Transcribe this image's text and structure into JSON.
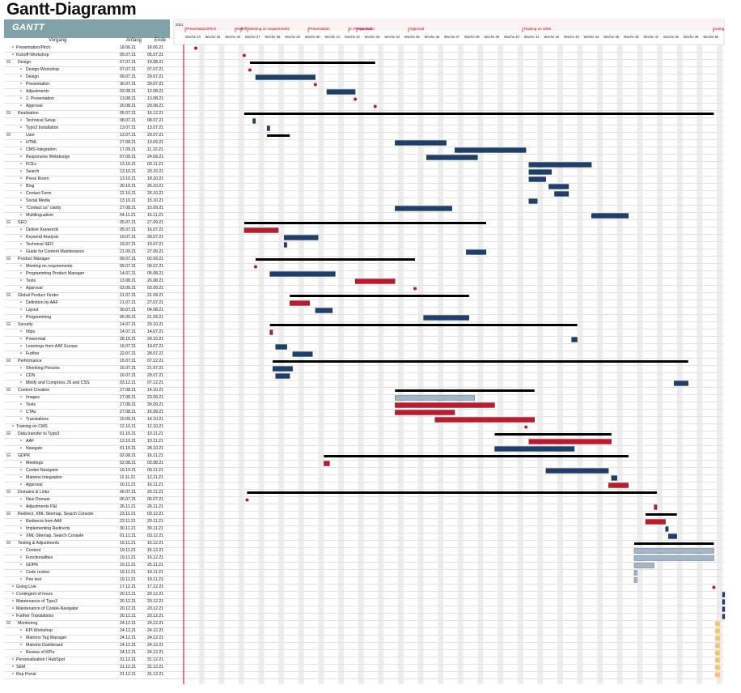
{
  "title": "Gantt-Diagramm",
  "logo_text": "GANTT",
  "columns": {
    "task": "Vorgang",
    "start": "Anfang",
    "end": "Ende"
  },
  "colors": {
    "navy": "#1d3f6b",
    "red": "#c0182c",
    "light": "#9fb6cc",
    "summary": "#000000",
    "weekend": "#e6e6e6",
    "today": "#e9d7ef"
  },
  "chart_data": {
    "type": "gantt",
    "timeline_year": "2021",
    "weeks": [
      "Woche 24",
      "Woche 25",
      "Woche 26",
      "Woche 27",
      "Woche 28",
      "Woche 29",
      "Woche 30",
      "Woche 31",
      "Woche 32",
      "Woche 33",
      "Woche 34",
      "Woche 35",
      "Woche 36",
      "Woche 37",
      "Woche 38",
      "Woche 39",
      "Woche 40",
      "Woche 41",
      "Woche 42",
      "Woche 43",
      "Woche 44",
      "Woche 45",
      "Woche 46",
      "Woche 47",
      "Woche 48",
      "Woche 49",
      "Woche 50"
    ],
    "milestones": [
      "Presentation/Pitch",
      "Kick",
      "Off",
      "Meeting on requirements",
      "Presentation",
      "2. Presentation",
      "Approval",
      "Approval",
      "Training on CMS",
      "Going"
    ],
    "tasks": [
      {
        "name": "Presentation/Pitch",
        "start": "18.06.21",
        "end": "18.06.21",
        "level": 0,
        "type": "milestone"
      },
      {
        "name": "Kickoff-Workshop",
        "start": "05.07.21",
        "end": "05.07.21",
        "level": 0,
        "type": "milestone"
      },
      {
        "name": "Design",
        "start": "07.07.21",
        "end": "19.08.21",
        "level": 0,
        "type": "summary"
      },
      {
        "name": "Design-Workshop",
        "start": "07.07.21",
        "end": "07.07.21",
        "level": 1,
        "type": "milestone"
      },
      {
        "name": "Design",
        "start": "09.07.21",
        "end": "29.07.21",
        "level": 1,
        "type": "task"
      },
      {
        "name": "Presentation",
        "start": "30.07.21",
        "end": "30.07.21",
        "level": 1,
        "type": "milestone"
      },
      {
        "name": "Adjustments",
        "start": "03.08.21",
        "end": "12.08.21",
        "level": 1,
        "type": "task"
      },
      {
        "name": "2. Presentation",
        "start": "13.08.21",
        "end": "13.08.21",
        "level": 1,
        "type": "milestone"
      },
      {
        "name": "Approval",
        "start": "20.08.21",
        "end": "20.08.21",
        "level": 1,
        "type": "milestone"
      },
      {
        "name": "Realisation",
        "start": "05.07.21",
        "end": "16.12.21",
        "level": 0,
        "type": "summary"
      },
      {
        "name": "Technical Setup",
        "start": "08.07.21",
        "end": "08.07.21",
        "level": 1,
        "type": "task"
      },
      {
        "name": "Typo3 Installation",
        "start": "13.07.21",
        "end": "13.07.21",
        "level": 1,
        "type": "task"
      },
      {
        "name": "User",
        "start": "13.07.21",
        "end": "20.07.21",
        "level": 1,
        "type": "summary"
      },
      {
        "name": "HTML",
        "start": "27.08.21",
        "end": "13.09.21",
        "level": 1,
        "type": "task"
      },
      {
        "name": "CMS-Integration",
        "start": "17.09.21",
        "end": "11.10.21",
        "level": 1,
        "type": "task"
      },
      {
        "name": "Responsive Webdesign",
        "start": "07.09.21",
        "end": "24.09.21",
        "level": 1,
        "type": "task"
      },
      {
        "name": "FCEs",
        "start": "13.10.21",
        "end": "03.11.21",
        "level": 1,
        "type": "task"
      },
      {
        "name": "Search",
        "start": "13.10.21",
        "end": "20.10.21",
        "level": 1,
        "type": "task"
      },
      {
        "name": "Press Room",
        "start": "13.10.21",
        "end": "18.10.21",
        "level": 1,
        "type": "task"
      },
      {
        "name": "Blog",
        "start": "20.10.21",
        "end": "26.10.21",
        "level": 1,
        "type": "task"
      },
      {
        "name": "Contact Form",
        "start": "22.10.21",
        "end": "26.10.21",
        "level": 1,
        "type": "task"
      },
      {
        "name": "Social Media",
        "start": "13.10.21",
        "end": "15.10.21",
        "level": 1,
        "type": "task"
      },
      {
        "name": "\"Contact us\" clarity",
        "start": "27.08.21",
        "end": "15.09.21",
        "level": 1,
        "type": "task"
      },
      {
        "name": "Multilingualism",
        "start": "04.11.21",
        "end": "16.11.21",
        "level": 1,
        "type": "task"
      },
      {
        "name": "SEO",
        "start": "05.07.21",
        "end": "27.09.21",
        "level": 0,
        "type": "summary"
      },
      {
        "name": "Deliver Keywords",
        "start": "05.07.21",
        "end": "16.07.21",
        "level": 1,
        "type": "task-red"
      },
      {
        "name": "Keyword Analysis",
        "start": "19.07.21",
        "end": "30.07.21",
        "level": 1,
        "type": "task"
      },
      {
        "name": "Technical SEO",
        "start": "19.07.21",
        "end": "19.07.21",
        "level": 1,
        "type": "task"
      },
      {
        "name": "Guide for Content Maintenance",
        "start": "21.09.21",
        "end": "27.09.21",
        "level": 1,
        "type": "task"
      },
      {
        "name": "Product Manager",
        "start": "09.07.21",
        "end": "02.09.21",
        "level": 0,
        "type": "summary"
      },
      {
        "name": "Meeting on requirements",
        "start": "09.07.21",
        "end": "09.07.21",
        "level": 1,
        "type": "milestone"
      },
      {
        "name": "Programming Product Manager",
        "start": "14.07.21",
        "end": "05.08.21",
        "level": 1,
        "type": "task"
      },
      {
        "name": "Tests",
        "start": "13.08.21",
        "end": "26.08.21",
        "level": 1,
        "type": "task-red"
      },
      {
        "name": "Approval",
        "start": "03.09.21",
        "end": "03.09.21",
        "level": 1,
        "type": "milestone"
      },
      {
        "name": "Global Product Finder",
        "start": "21.07.21",
        "end": "21.09.21",
        "level": 0,
        "type": "summary"
      },
      {
        "name": "Definition by AAF",
        "start": "21.07.21",
        "end": "27.07.21",
        "level": 1,
        "type": "task-red"
      },
      {
        "name": "Layout",
        "start": "30.07.21",
        "end": "04.08.21",
        "level": 1,
        "type": "task"
      },
      {
        "name": "Programming",
        "start": "06.09.21",
        "end": "21.09.21",
        "level": 1,
        "type": "task"
      },
      {
        "name": "Security",
        "start": "14.07.21",
        "end": "29.10.21",
        "level": 0,
        "type": "summary"
      },
      {
        "name": "https",
        "start": "14.07.21",
        "end": "14.07.21",
        "level": 1,
        "type": "task-red"
      },
      {
        "name": "Powermail",
        "start": "28.10.21",
        "end": "29.10.21",
        "level": 1,
        "type": "task"
      },
      {
        "name": "Learnings from AAF Europe",
        "start": "16.07.21",
        "end": "19.07.21",
        "level": 1,
        "type": "task"
      },
      {
        "name": "Further",
        "start": "22.07.21",
        "end": "28.07.21",
        "level": 1,
        "type": "task"
      },
      {
        "name": "Performance",
        "start": "15.07.21",
        "end": "07.12.21",
        "level": 0,
        "type": "summary"
      },
      {
        "name": "Shrinking Pictures",
        "start": "15.07.21",
        "end": "21.07.21",
        "level": 1,
        "type": "task"
      },
      {
        "name": "CDN",
        "start": "16.07.21",
        "end": "20.07.21",
        "level": 1,
        "type": "task"
      },
      {
        "name": "Minify and Compress JS and CSS",
        "start": "03.12.21",
        "end": "07.12.21",
        "level": 1,
        "type": "task"
      },
      {
        "name": "Content Creation",
        "start": "27.08.21",
        "end": "14.10.21",
        "level": 0,
        "type": "summary"
      },
      {
        "name": "Images",
        "start": "27.08.21",
        "end": "23.09.21",
        "level": 1,
        "type": "task-light"
      },
      {
        "name": "Texts",
        "start": "27.08.21",
        "end": "30.09.21",
        "level": 1,
        "type": "task-red"
      },
      {
        "name": "CTAs",
        "start": "27.08.21",
        "end": "16.09.21",
        "level": 1,
        "type": "task-red"
      },
      {
        "name": "Translations",
        "start": "10.09.21",
        "end": "14.10.21",
        "level": 1,
        "type": "task-red"
      },
      {
        "name": "Training on CMS",
        "start": "12.10.21",
        "end": "12.10.21",
        "level": 0,
        "type": "milestone"
      },
      {
        "name": "Data transfer to Typo3",
        "start": "01.10.21",
        "end": "10.11.21",
        "level": 0,
        "type": "summary"
      },
      {
        "name": "AAF",
        "start": "13.10.21",
        "end": "10.11.21",
        "level": 1,
        "type": "task-red"
      },
      {
        "name": "Navigate",
        "start": "01.10.21",
        "end": "28.10.21",
        "level": 1,
        "type": "task"
      },
      {
        "name": "GDPR",
        "start": "02.08.21",
        "end": "16.11.21",
        "level": 0,
        "type": "summary"
      },
      {
        "name": "Meetings",
        "start": "02.08.21",
        "end": "03.08.21",
        "level": 1,
        "type": "task-red"
      },
      {
        "name": "Cookie-Navigator",
        "start": "19.10.21",
        "end": "09.11.21",
        "level": 1,
        "type": "task"
      },
      {
        "name": "Matomo Integration",
        "start": "11.11.21",
        "end": "12.11.21",
        "level": 1,
        "type": "task"
      },
      {
        "name": "Approval",
        "start": "10.11.21",
        "end": "16.11.21",
        "level": 1,
        "type": "task-red"
      },
      {
        "name": "Domains & Links",
        "start": "06.07.21",
        "end": "26.11.21",
        "level": 0,
        "type": "summary"
      },
      {
        "name": "New Domain",
        "start": "06.07.21",
        "end": "06.07.21",
        "level": 1,
        "type": "milestone"
      },
      {
        "name": "Adjustments P&I",
        "start": "26.11.21",
        "end": "26.11.21",
        "level": 1,
        "type": "task-red"
      },
      {
        "name": "Redirect, XML-Sitemap, Search Console",
        "start": "23.11.21",
        "end": "03.12.21",
        "level": 0,
        "type": "summary"
      },
      {
        "name": "Redirects from AAF",
        "start": "23.11.21",
        "end": "29.11.21",
        "level": 1,
        "type": "task-red"
      },
      {
        "name": "Implementing Redirects",
        "start": "30.11.21",
        "end": "30.11.21",
        "level": 1,
        "type": "task"
      },
      {
        "name": "XML-Sitemap, Search Console",
        "start": "01.12.21",
        "end": "03.12.21",
        "level": 1,
        "type": "task"
      },
      {
        "name": "Testing & Adjustments",
        "start": "19.11.21",
        "end": "16.12.21",
        "level": 0,
        "type": "summary"
      },
      {
        "name": "Content",
        "start": "19.11.21",
        "end": "16.12.21",
        "level": 1,
        "type": "task-light"
      },
      {
        "name": "Functionalities",
        "start": "19.11.21",
        "end": "16.12.21",
        "level": 1,
        "type": "task-light"
      },
      {
        "name": "GDPR",
        "start": "19.11.21",
        "end": "25.11.21",
        "level": 1,
        "type": "task-light"
      },
      {
        "name": "Code review",
        "start": "19.11.21",
        "end": "19.11.21",
        "level": 1,
        "type": "task-light"
      },
      {
        "name": "Pen test",
        "start": "19.11.21",
        "end": "19.11.21",
        "level": 1,
        "type": "task-light"
      },
      {
        "name": "Going Live",
        "start": "17.12.21",
        "end": "17.12.21",
        "level": 0,
        "type": "milestone"
      },
      {
        "name": "Contingent of hours",
        "start": "20.12.21",
        "end": "20.12.21",
        "level": 0,
        "type": "task"
      },
      {
        "name": "Maintenance of Typo3",
        "start": "20.12.21",
        "end": "20.12.21",
        "level": 0,
        "type": "task"
      },
      {
        "name": "Maintenance of Cookie-Navigator",
        "start": "20.12.21",
        "end": "20.12.21",
        "level": 0,
        "type": "task"
      },
      {
        "name": "Further Translations",
        "start": "20.12.21",
        "end": "20.12.21",
        "level": 0,
        "type": "task"
      },
      {
        "name": "Monitoring",
        "start": "24.12.21",
        "end": "24.12.21",
        "level": 0,
        "type": "summary"
      },
      {
        "name": "KPI Workshop",
        "start": "24.12.21",
        "end": "24.12.21",
        "level": 1,
        "type": "task"
      },
      {
        "name": "Matomo Tag Manager",
        "start": "24.12.21",
        "end": "24.12.21",
        "level": 1,
        "type": "task"
      },
      {
        "name": "Matomo Dashboard",
        "start": "24.12.21",
        "end": "24.12.21",
        "level": 1,
        "type": "task"
      },
      {
        "name": "Review of KPIs",
        "start": "24.12.21",
        "end": "24.12.21",
        "level": 1,
        "type": "task"
      },
      {
        "name": "Personalization / HubSpot",
        "start": "31.12.21",
        "end": "31.12.21",
        "level": 0,
        "type": "task"
      },
      {
        "name": "SEM",
        "start": "31.12.21",
        "end": "31.12.21",
        "level": 0,
        "type": "task"
      },
      {
        "name": "Rep Portal",
        "start": "31.12.21",
        "end": "31.12.21",
        "level": 0,
        "type": "task"
      }
    ]
  }
}
